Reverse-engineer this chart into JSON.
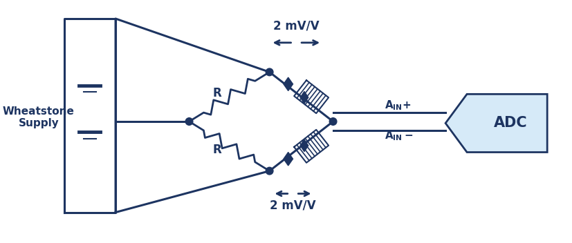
{
  "bg_color": "#ffffff",
  "dark_blue": "#1d3461",
  "light_blue_adc": "#d6eaf8",
  "figsize": [
    8.27,
    3.52
  ],
  "dpi": 100,
  "wheatstone_label": "Wheatstone\nSupply",
  "adc_label": "ADC",
  "mv_label": "2 mV/V",
  "R_label": "R"
}
